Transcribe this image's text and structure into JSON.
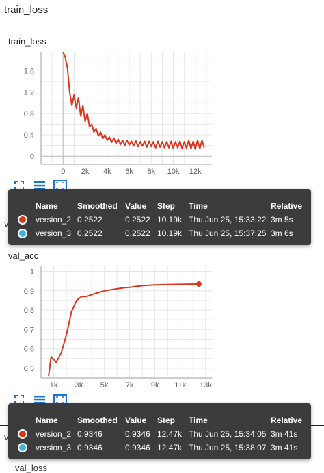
{
  "group": {
    "title": "train_loss"
  },
  "charts": [
    {
      "title": "train_loss",
      "tooltip": {
        "headers": [
          "Name",
          "Smoothed",
          "Value",
          "Step",
          "Time",
          "Relative"
        ],
        "rows": [
          {
            "name": "version_2",
            "smoothed": "0.2522",
            "value": "0.2522",
            "step": "10.19k",
            "time": "Thu Jun 25, 15:33:22",
            "relative": "3m 5s",
            "color": "#d9361b"
          },
          {
            "name": "version_3",
            "smoothed": "0.2522",
            "value": "0.2522",
            "step": "10.19k",
            "time": "Thu Jun 25, 15:37:25",
            "relative": "3m 6s",
            "color": "#3cb5e5"
          }
        ]
      }
    },
    {
      "title": "val_acc",
      "tooltip": {
        "headers": [
          "Name",
          "Smoothed",
          "Value",
          "Step",
          "Time",
          "Relative"
        ],
        "rows": [
          {
            "name": "version_2",
            "smoothed": "0.9346",
            "value": "0.9346",
            "step": "12.47k",
            "time": "Thu Jun 25, 15:34:05",
            "relative": "3m 41s",
            "color": "#d9361b"
          },
          {
            "name": "version_3",
            "smoothed": "0.9346",
            "value": "0.9346",
            "step": "12.47k",
            "time": "Thu Jun 25, 15:38:07",
            "relative": "3m 41s",
            "color": "#3cb5e5"
          }
        ]
      }
    }
  ],
  "peek": {
    "val_acc_cut": "val_acc",
    "val_loss_cut": "val_loss",
    "partial_label": "val_loss"
  },
  "chart_data": [
    {
      "type": "line",
      "title": "train_loss",
      "xlim": [
        -2000,
        13500
      ],
      "ylim": [
        -0.15,
        1.95
      ],
      "xticks": [
        0,
        2000,
        4000,
        6000,
        8000,
        10000,
        12000
      ],
      "xtick_labels": [
        "0",
        "2k",
        "4k",
        "6k",
        "8k",
        "10k",
        "12k"
      ],
      "yticks": [
        0,
        0.4,
        0.8,
        1.2,
        1.6
      ],
      "ytick_labels": [
        "0",
        "0.4",
        "0.8",
        "1.2",
        "1.6"
      ],
      "grid": true,
      "series": [
        {
          "color": "#d9361b",
          "x": [
            0,
            200,
            400,
            600,
            800,
            1000,
            1200,
            1400,
            1600,
            1800,
            2000,
            2200,
            2400,
            2600,
            2800,
            3000,
            3200,
            3400,
            3600,
            3800,
            4000,
            4200,
            4400,
            4600,
            4800,
            5000,
            5200,
            5400,
            5600,
            5800,
            6000,
            6200,
            6400,
            6600,
            6800,
            7000,
            7200,
            7400,
            7600,
            7800,
            8000,
            8200,
            8400,
            8600,
            8800,
            9000,
            9200,
            9400,
            9600,
            9800,
            10000,
            10200,
            10400,
            10600,
            10800,
            11000,
            11200,
            11400,
            11600,
            11800,
            12000,
            12200,
            12400,
            12600,
            12800
          ],
          "y": [
            1.95,
            1.85,
            1.65,
            1.2,
            0.95,
            1.15,
            0.9,
            1.1,
            0.75,
            0.95,
            0.65,
            0.8,
            0.55,
            0.6,
            0.45,
            0.52,
            0.38,
            0.45,
            0.33,
            0.4,
            0.3,
            0.36,
            0.26,
            0.34,
            0.24,
            0.32,
            0.22,
            0.3,
            0.2,
            0.3,
            0.21,
            0.28,
            0.19,
            0.29,
            0.18,
            0.27,
            0.19,
            0.28,
            0.17,
            0.28,
            0.18,
            0.27,
            0.16,
            0.28,
            0.17,
            0.27,
            0.16,
            0.27,
            0.16,
            0.28,
            0.15,
            0.27,
            0.16,
            0.28,
            0.14,
            0.27,
            0.15,
            0.3,
            0.14,
            0.28,
            0.13,
            0.3,
            0.14,
            0.3,
            0.16
          ]
        }
      ]
    },
    {
      "type": "line",
      "title": "val_acc",
      "xlim": [
        0,
        13500
      ],
      "ylim": [
        0.45,
        1.03
      ],
      "xticks": [
        1000,
        3000,
        5000,
        7000,
        9000,
        11000,
        13000
      ],
      "xtick_labels": [
        "1k",
        "3k",
        "5k",
        "7k",
        "9k",
        "11k",
        "13k"
      ],
      "yticks": [
        0.5,
        0.6,
        0.7,
        0.8,
        0.9,
        1.0
      ],
      "ytick_labels": [
        "0.5",
        "0.6",
        "0.7",
        "0.8",
        "0.9",
        "1"
      ],
      "grid": true,
      "series": [
        {
          "color": "#d9361b",
          "x": [
            600,
            800,
            1200,
            1600,
            2000,
            2400,
            2800,
            3200,
            3600,
            4000,
            4500,
            5000,
            5500,
            6000,
            6500,
            7000,
            7500,
            8000,
            9000,
            10000,
            11000,
            12470
          ],
          "y": [
            0.46,
            0.56,
            0.53,
            0.58,
            0.67,
            0.79,
            0.85,
            0.87,
            0.87,
            0.88,
            0.89,
            0.9,
            0.905,
            0.91,
            0.915,
            0.918,
            0.922,
            0.926,
            0.93,
            0.932,
            0.933,
            0.9346
          ]
        }
      ]
    }
  ]
}
